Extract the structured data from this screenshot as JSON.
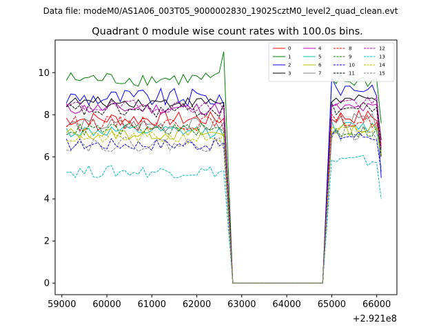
{
  "figure": {
    "suptitle": "Data file: modeM0/AS1A06_003T05_9000002830_19025cztM0_level2_quad_clean.evt",
    "offset_label": "+2.921e8"
  },
  "chart_data": {
    "type": "line",
    "title": "Quadrant 0 module wise count rates with 100.0s bins.",
    "xlabel": "",
    "ylabel": "",
    "xlim": [
      58850,
      66450
    ],
    "ylim": [
      -0.55,
      11.55
    ],
    "x_offset": 292100000,
    "xticks": [
      59000,
      60000,
      61000,
      62000,
      63000,
      64000,
      65000,
      66000
    ],
    "yticks": [
      0,
      2,
      4,
      6,
      8,
      10
    ],
    "legend_position": "top-right",
    "gap": {
      "start": 62700,
      "end": 64800
    },
    "x": [
      59100,
      59200,
      59300,
      59400,
      59500,
      59600,
      59700,
      59800,
      59900,
      60000,
      60100,
      60200,
      60300,
      60400,
      60500,
      60600,
      60700,
      60800,
      60900,
      61000,
      61100,
      61200,
      61300,
      61400,
      61500,
      61600,
      61700,
      61800,
      61900,
      62000,
      62100,
      62200,
      62300,
      62400,
      62500,
      62600,
      62800,
      62900,
      63000,
      63100,
      63200,
      63300,
      63400,
      63500,
      63600,
      63700,
      63800,
      63900,
      64000,
      64100,
      64200,
      64300,
      64400,
      64500,
      64600,
      64700,
      64800,
      65000,
      65100,
      65200,
      65300,
      65400,
      65500,
      65600,
      65700,
      65800,
      65900,
      66000,
      66100
    ],
    "series": [
      {
        "name": "0",
        "color": "#ff0000",
        "dash": "solid",
        "base_before": 7.8,
        "base_after": 7.9,
        "amp": 0.35,
        "end": 6.5
      },
      {
        "name": "1",
        "color": "#008000",
        "dash": "solid",
        "base_before": 9.7,
        "base_after": 9.6,
        "amp": 0.35,
        "peak": 11.0,
        "end": 7.6
      },
      {
        "name": "2",
        "color": "#0000ff",
        "dash": "solid",
        "base_before": 8.8,
        "base_after": 9.3,
        "amp": 0.45,
        "end": 5.0
      },
      {
        "name": "3",
        "color": "#000000",
        "dash": "solid",
        "base_before": 8.6,
        "base_after": 8.7,
        "amp": 0.25,
        "end": 6.8
      },
      {
        "name": "4",
        "color": "#bf00bf",
        "dash": "solid",
        "base_before": 8.3,
        "base_after": 8.3,
        "amp": 0.3,
        "end": 6.0
      },
      {
        "name": "5",
        "color": "#00bfbf",
        "dash": "solid",
        "base_before": 7.2,
        "base_after": 7.4,
        "amp": 0.3,
        "end": 6.0
      },
      {
        "name": "6",
        "color": "#bfbf00",
        "dash": "solid",
        "base_before": 7.1,
        "base_after": 7.3,
        "amp": 0.3,
        "end": 6.2
      },
      {
        "name": "7",
        "color": "#808080",
        "dash": "solid",
        "base_before": 7.5,
        "base_after": 7.7,
        "amp": 0.35,
        "end": 6.3
      },
      {
        "name": "8",
        "color": "#ff0000",
        "dash": "dashed",
        "base_before": 7.6,
        "base_after": 7.7,
        "amp": 0.35,
        "end": 6.6
      },
      {
        "name": "9",
        "color": "#008000",
        "dash": "dashed",
        "base_before": 7.3,
        "base_after": 7.2,
        "amp": 0.3,
        "end": 6.1
      },
      {
        "name": "10",
        "color": "#0000ff",
        "dash": "dashed",
        "base_before": 6.6,
        "base_after": 7.0,
        "amp": 0.3,
        "end": 5.3
      },
      {
        "name": "11",
        "color": "#000000",
        "dash": "dashed",
        "base_before": 8.2,
        "base_after": 8.3,
        "amp": 0.35,
        "end": 6.0
      },
      {
        "name": "12",
        "color": "#bf00bf",
        "dash": "dashed",
        "base_before": 8.4,
        "base_after": 8.6,
        "amp": 0.3,
        "end": 6.4
      },
      {
        "name": "13",
        "color": "#00bfbf",
        "dash": "dashed",
        "base_before": 5.3,
        "base_after": 5.8,
        "amp": 0.3,
        "end": 4.0
      },
      {
        "name": "14",
        "color": "#bfbf00",
        "dash": "dashed",
        "base_before": 6.9,
        "base_after": 7.2,
        "amp": 0.3,
        "end": 6.0
      },
      {
        "name": "15",
        "color": "#808080",
        "dash": "dashed",
        "base_before": 6.6,
        "base_after": 7.1,
        "amp": 0.35,
        "end": 5.5
      }
    ]
  }
}
